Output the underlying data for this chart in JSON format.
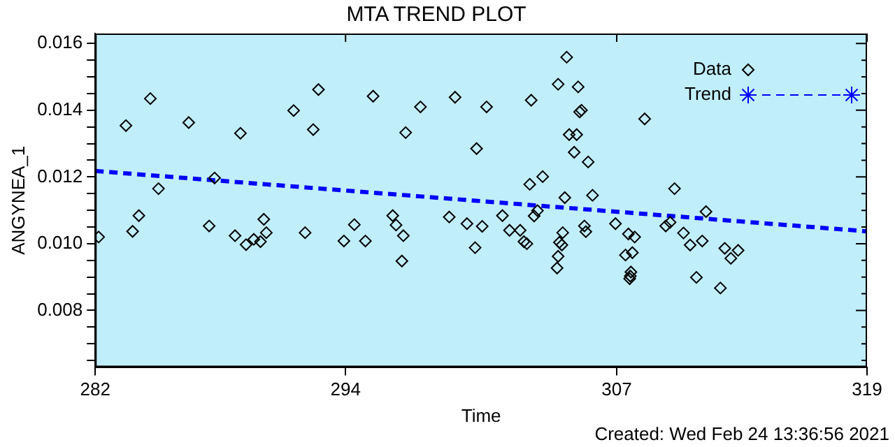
{
  "chart_data": {
    "type": "scatter",
    "title": "MTA TREND PLOT",
    "xlabel": "Time",
    "ylabel": "ANGYNEA_1",
    "annotations": [
      "Created: Wed Feb 24 13:36:56 2021"
    ],
    "xlim": [
      282,
      319
    ],
    "xticks": [
      282,
      294,
      307,
      319
    ],
    "ylim": [
      0.0063,
      0.0163
    ],
    "yticks": [
      {
        "value": 0.0065,
        "label": null
      },
      {
        "value": 0.007,
        "label": null
      },
      {
        "value": 0.0075,
        "label": null
      },
      {
        "value": 0.008,
        "label": "0.008"
      },
      {
        "value": 0.0085,
        "label": null
      },
      {
        "value": 0.009,
        "label": null
      },
      {
        "value": 0.0095,
        "label": null
      },
      {
        "value": 0.01,
        "label": "0.010"
      },
      {
        "value": 0.0105,
        "label": null
      },
      {
        "value": 0.011,
        "label": null
      },
      {
        "value": 0.0115,
        "label": null
      },
      {
        "value": 0.012,
        "label": "0.012"
      },
      {
        "value": 0.0125,
        "label": null
      },
      {
        "value": 0.013,
        "label": null
      },
      {
        "value": 0.0135,
        "label": null
      },
      {
        "value": 0.014,
        "label": "0.014"
      },
      {
        "value": 0.0145,
        "label": null
      },
      {
        "value": 0.015,
        "label": null
      },
      {
        "value": 0.0155,
        "label": null
      },
      {
        "value": 0.016,
        "label": "0.016"
      }
    ],
    "grid": false,
    "legend": "top right",
    "series": [
      {
        "name": "Data",
        "color": "#000000",
        "marker": "diamond",
        "x": [
          282.16,
          283.47,
          283.79,
          284.09,
          284.64,
          285.03,
          286.48,
          287.46,
          287.72,
          288.7,
          288.96,
          289.23,
          289.6,
          289.92,
          290.08,
          290.2,
          291.51,
          292.06,
          292.45,
          292.7,
          293.92,
          294.42,
          294.95,
          295.32,
          296.26,
          296.42,
          296.77,
          296.7,
          296.88,
          297.59,
          298.97,
          299.25,
          299.82,
          300.28,
          300.21,
          300.55,
          300.76,
          301.52,
          301.86,
          302.37,
          302.55,
          302.69,
          302.83,
          302.9,
          303.04,
          303.2,
          303.45,
          304.19,
          304.6,
          305.15,
          305.22,
          305.31,
          304.72,
          305.08,
          304.96,
          305.63,
          304.51,
          305.84,
          304.41,
          304.25,
          304.37,
          304.19,
          304.14,
          305.45,
          305.52,
          306.94,
          307.56,
          307.86,
          307.42,
          307.75,
          307.65,
          307.62,
          307.68,
          308.34,
          309.77,
          309.35,
          309.56,
          310.2,
          310.52,
          311.1,
          311.28,
          310.82,
          312.18,
          312.47,
          312.82,
          311.97
        ],
        "values": [
          0.0102,
          0.01354,
          0.01037,
          0.01084,
          0.01435,
          0.01165,
          0.01363,
          0.01053,
          0.01197,
          0.01024,
          0.01331,
          0.00997,
          0.01013,
          0.01006,
          0.01073,
          0.01033,
          0.01399,
          0.01033,
          0.01342,
          0.01462,
          0.01008,
          0.01057,
          0.01008,
          0.01442,
          0.01084,
          0.01056,
          0.01024,
          0.00948,
          0.01333,
          0.0141,
          0.0108,
          0.01439,
          0.0106,
          0.01285,
          0.00988,
          0.01052,
          0.0141,
          0.01084,
          0.0104,
          0.0104,
          0.01006,
          0.01,
          0.01178,
          0.0143,
          0.01083,
          0.01099,
          0.01201,
          0.01478,
          0.01559,
          0.0147,
          0.01395,
          0.014,
          0.01327,
          0.01327,
          0.01274,
          0.01245,
          0.01138,
          0.01145,
          0.01033,
          0.01004,
          0.00996,
          0.00962,
          0.00927,
          0.01053,
          0.01036,
          0.0106,
          0.01029,
          0.0102,
          0.00966,
          0.00973,
          0.00903,
          0.00895,
          0.00915,
          0.01374,
          0.01165,
          0.01053,
          0.01064,
          0.01032,
          0.00996,
          0.01008,
          0.01096,
          0.00899,
          0.00986,
          0.00956,
          0.0098,
          0.00867
        ]
      },
      {
        "name": "Trend",
        "type": "line",
        "color": "#0000ff",
        "line_style": "dashed",
        "x": [
          282,
          319
        ],
        "values": [
          0.01218,
          0.01037
        ]
      }
    ]
  }
}
